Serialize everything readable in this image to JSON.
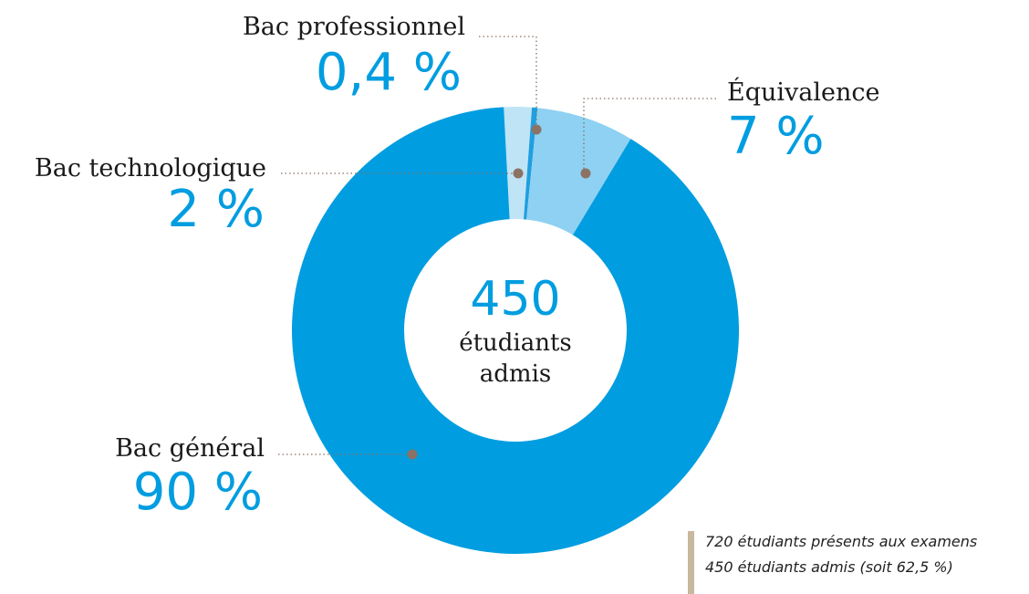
{
  "chart_data": {
    "type": "pie",
    "donut": true,
    "categories": [
      "Bac technologique",
      "Bac professionnel",
      "Équivalence",
      "Bac général"
    ],
    "values": [
      2,
      0.4,
      7,
      90
    ],
    "value_labels": [
      "2 %",
      "0,4 %",
      "7 %",
      "90 %"
    ],
    "colors": [
      "#bfe4f6",
      "#1f9fe0",
      "#8ed1f2",
      "#009de0"
    ],
    "center_value": 450,
    "center_label": [
      "étudiants",
      "admis"
    ],
    "notes": [
      "720 étudiants présents aux examens",
      "450 étudiants admis (soit 62,5 %)"
    ]
  }
}
